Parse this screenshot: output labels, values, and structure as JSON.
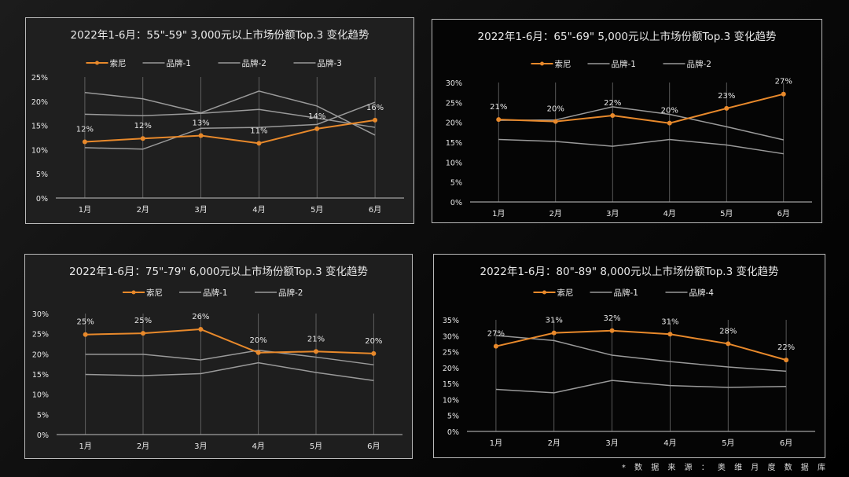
{
  "colors": {
    "sony": "#e8892b",
    "other": "#9a9a9a",
    "grid": "#6e6e6e",
    "axis": "#a0a0a0",
    "text": "#e8e8e8"
  },
  "footer": "* 数 据 来 源 ： 奥 维 月 度 数 据 库",
  "chart_data": [
    {
      "type": "line",
      "title": "2022年1-6月：55\"-59\" 3,000元以上市场份额Top.3 变化趋势",
      "categories": [
        "1月",
        "2月",
        "3月",
        "4月",
        "5月",
        "6月"
      ],
      "ylim": [
        0,
        25
      ],
      "yticks": [
        "0%",
        "5%",
        "10%",
        "15%",
        "20%",
        "25%"
      ],
      "ytick_values": [
        0,
        5,
        10,
        15,
        20,
        25
      ],
      "legend": "top",
      "grid": "vertical",
      "series": [
        {
          "name": "索尼",
          "values": [
            11.6,
            12.3,
            12.9,
            11.3,
            14.3,
            16.1
          ],
          "labels": [
            "12%",
            "12%",
            "13%",
            "11%",
            "14%",
            "16%"
          ],
          "highlight": true
        },
        {
          "name": "品牌-1",
          "values": [
            21.8,
            20.5,
            17.6,
            22.1,
            19.0,
            13.0
          ]
        },
        {
          "name": "品牌-2",
          "values": [
            17.3,
            17.0,
            17.5,
            18.3,
            16.5,
            14.6
          ]
        },
        {
          "name": "品牌-3",
          "values": [
            10.4,
            10.1,
            14.4,
            14.6,
            15.2,
            19.8
          ]
        }
      ]
    },
    {
      "type": "line",
      "title": "2022年1-6月：65\"-69\" 5,000元以上市场份额Top.3 变化趋势",
      "categories": [
        "1月",
        "2月",
        "3月",
        "4月",
        "5月",
        "6月"
      ],
      "ylim": [
        0,
        30
      ],
      "yticks": [
        "0%",
        "5%",
        "10%",
        "15%",
        "20%",
        "25%",
        "30%"
      ],
      "ytick_values": [
        0,
        5,
        10,
        15,
        20,
        25,
        30
      ],
      "legend": "top",
      "grid": "vertical",
      "series": [
        {
          "name": "索尼",
          "values": [
            20.7,
            20.2,
            21.7,
            19.8,
            23.5,
            27.1
          ],
          "labels": [
            "21%",
            "20%",
            "22%",
            "20%",
            "23%",
            "27%"
          ],
          "highlight": true
        },
        {
          "name": "品牌-1",
          "values": [
            20.5,
            20.6,
            23.9,
            22.0,
            18.9,
            15.6
          ]
        },
        {
          "name": "品牌-2",
          "values": [
            15.7,
            15.2,
            14.0,
            15.7,
            14.3,
            12.1
          ]
        }
      ]
    },
    {
      "type": "line",
      "title": "2022年1-6月：75\"-79\" 6,000元以上市场份额Top.3 变化趋势",
      "categories": [
        "1月",
        "2月",
        "3月",
        "4月",
        "5月",
        "6月"
      ],
      "ylim": [
        0,
        30
      ],
      "yticks": [
        "0%",
        "5%",
        "10%",
        "15%",
        "20%",
        "25%",
        "30%"
      ],
      "ytick_values": [
        0,
        5,
        10,
        15,
        20,
        25,
        30
      ],
      "legend": "top",
      "grid": "vertical",
      "series": [
        {
          "name": "索尼",
          "values": [
            24.8,
            25.1,
            26.1,
            20.3,
            20.6,
            20.1
          ],
          "labels": [
            "25%",
            "25%",
            "26%",
            "20%",
            "21%",
            "20%"
          ],
          "highlight": true
        },
        {
          "name": "品牌-1",
          "values": [
            19.9,
            19.9,
            18.5,
            20.9,
            19.2,
            17.3
          ]
        },
        {
          "name": "品牌-2",
          "values": [
            14.9,
            14.6,
            15.1,
            17.8,
            15.4,
            13.4
          ]
        }
      ]
    },
    {
      "type": "line",
      "title": "2022年1-6月：80\"-89\" 8,000元以上市场份额Top.3 变化趋势",
      "categories": [
        "1月",
        "2月",
        "3月",
        "4月",
        "5月",
        "6月"
      ],
      "ylim": [
        0,
        35
      ],
      "yticks": [
        "0%",
        "5%",
        "10%",
        "15%",
        "20%",
        "25%",
        "30%",
        "35%"
      ],
      "ytick_values": [
        0,
        5,
        10,
        15,
        20,
        25,
        30,
        35
      ],
      "legend": "top",
      "grid": "vertical",
      "series": [
        {
          "name": "索尼",
          "values": [
            26.7,
            30.9,
            31.6,
            30.5,
            27.5,
            22.4
          ],
          "labels": [
            "27%",
            "31%",
            "32%",
            "31%",
            "28%",
            "22%"
          ],
          "highlight": true
        },
        {
          "name": "品牌-1",
          "values": [
            30.1,
            28.5,
            23.9,
            21.9,
            20.2,
            18.9
          ]
        },
        {
          "name": "品牌-4",
          "values": [
            13.2,
            12.1,
            16.0,
            14.4,
            13.8,
            14.1
          ]
        }
      ]
    }
  ]
}
